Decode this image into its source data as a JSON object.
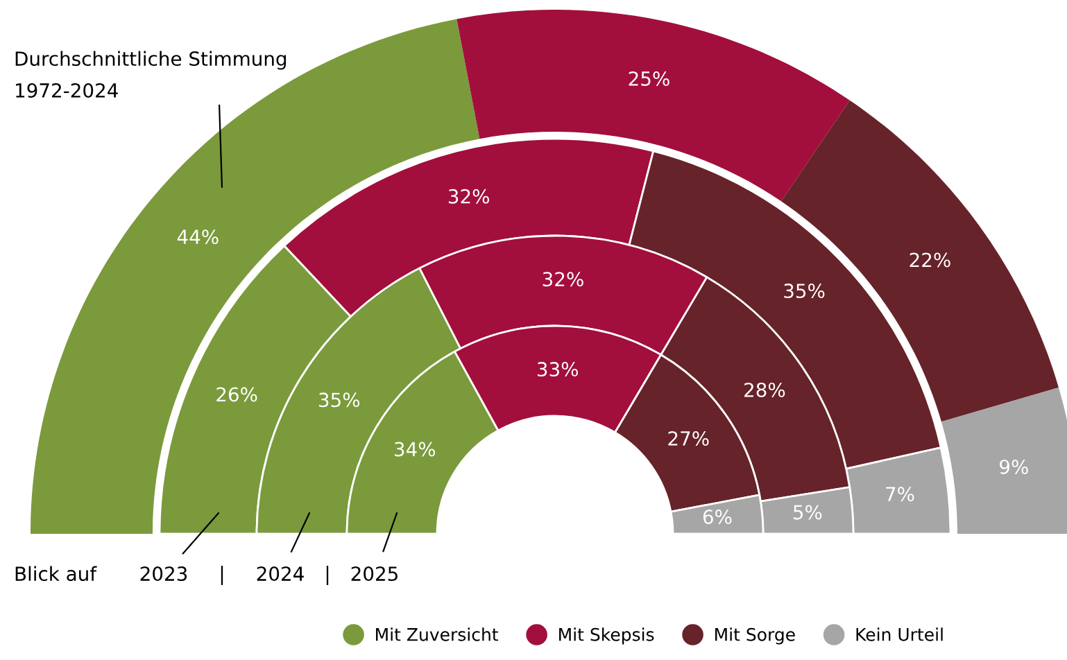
{
  "chart_data": {
    "type": "donut",
    "categories": [
      "Mit Zuversicht",
      "Mit Skepsis",
      "Mit Sorge",
      "Kein Urteil"
    ],
    "colors": [
      "#7b9a3c",
      "#a20f3c",
      "#66232a",
      "#a6a6a6"
    ],
    "series": [
      {
        "name": "Durchschnittliche Stimmung\n1972-2024",
        "values": [
          44,
          25,
          22,
          9
        ],
        "value_labels": [
          "44%",
          "25%",
          "22%",
          "9%"
        ]
      },
      {
        "name": "2023",
        "values": [
          26,
          32,
          35,
          7
        ],
        "value_labels": [
          "26%",
          "32%",
          "35%",
          "7%"
        ]
      },
      {
        "name": "2024",
        "values": [
          35,
          32,
          28,
          5
        ],
        "value_labels": [
          "35%",
          "32%",
          "28%",
          "5%"
        ]
      },
      {
        "name": "2025",
        "values": [
          34,
          33,
          27,
          6
        ],
        "value_labels": [
          "34%",
          "33%",
          "27%",
          "6%"
        ]
      }
    ],
    "annotations": [
      "Blick auf",
      "|",
      "|"
    ],
    "legend": "bottom"
  }
}
